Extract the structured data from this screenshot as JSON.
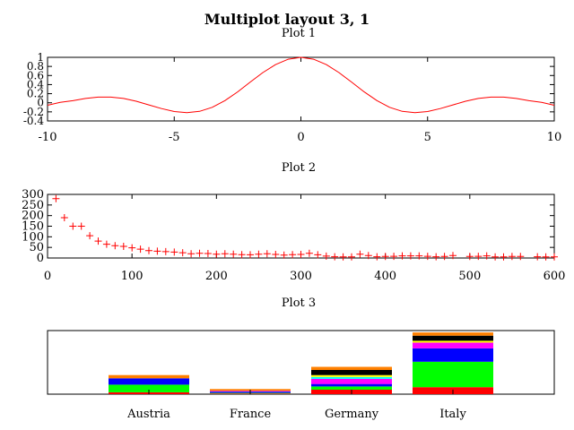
{
  "page_title": "Multiplot layout 3, 1",
  "chart_data": [
    {
      "type": "line",
      "title": "Plot 1",
      "xlim": [
        -10,
        10
      ],
      "ylim": [
        -0.4,
        1
      ],
      "x_ticks": [
        -10,
        -5,
        0,
        5,
        10
      ],
      "x_tick_labels": [
        "-10",
        "-5",
        "0",
        "5",
        "10"
      ],
      "y_ticks": [
        -0.4,
        -0.2,
        0,
        0.2,
        0.4,
        0.6,
        0.8,
        1
      ],
      "y_tick_labels": [
        "-0.4",
        "-0.2",
        "0",
        "0.2",
        "0.4",
        "0.6",
        "0.8",
        "1"
      ],
      "series": [
        {
          "color": "#ff0000",
          "x": [
            -10,
            -9.5,
            -9,
            -8.5,
            -8,
            -7.5,
            -7,
            -6.5,
            -6,
            -5.5,
            -5,
            -4.5,
            -4,
            -3.5,
            -3,
            -2.5,
            -2,
            -1.5,
            -1,
            -0.5,
            0,
            0.5,
            1,
            1.5,
            2,
            2.5,
            3,
            3.5,
            4,
            4.5,
            5,
            5.5,
            6,
            6.5,
            7,
            7.5,
            8,
            8.5,
            9,
            9.5,
            10
          ],
          "y": [
            -0.054,
            0.008,
            0.046,
            0.094,
            0.124,
            0.125,
            0.094,
            0.033,
            -0.047,
            -0.128,
            -0.192,
            -0.217,
            -0.189,
            -0.1,
            0.047,
            0.239,
            0.455,
            0.665,
            0.841,
            0.959,
            1.0,
            0.959,
            0.841,
            0.665,
            0.455,
            0.239,
            0.047,
            -0.1,
            -0.189,
            -0.217,
            -0.192,
            -0.128,
            -0.047,
            0.033,
            0.094,
            0.125,
            0.124,
            0.094,
            0.046,
            0.008,
            -0.054
          ]
        }
      ],
      "grid": false
    },
    {
      "type": "scatter",
      "title": "Plot 2",
      "xlim": [
        0,
        600
      ],
      "ylim": [
        0,
        300
      ],
      "x_ticks": [
        0,
        100,
        200,
        300,
        400,
        500,
        600
      ],
      "x_tick_labels": [
        "0",
        "100",
        "200",
        "300",
        "400",
        "500",
        "600"
      ],
      "y_ticks": [
        0,
        50,
        100,
        150,
        200,
        250,
        300
      ],
      "y_tick_labels": [
        "0",
        "50",
        "100",
        "150",
        "200",
        "250",
        "300"
      ],
      "series": [
        {
          "color": "#ff0000",
          "marker": "plus",
          "x": [
            10,
            20,
            30,
            40,
            50,
            60,
            70,
            80,
            90,
            100,
            110,
            120,
            130,
            140,
            150,
            160,
            170,
            180,
            190,
            200,
            210,
            220,
            230,
            240,
            250,
            260,
            270,
            280,
            290,
            300,
            310,
            320,
            330,
            340,
            350,
            360,
            370,
            380,
            390,
            400,
            410,
            420,
            430,
            440,
            450,
            460,
            470,
            480,
            500,
            510,
            520,
            530,
            540,
            550,
            560,
            580,
            590,
            600
          ],
          "y": [
            280,
            190,
            150,
            150,
            105,
            80,
            65,
            58,
            55,
            48,
            42,
            35,
            32,
            30,
            28,
            25,
            20,
            22,
            21,
            18,
            20,
            18,
            16,
            15,
            18,
            20,
            17,
            14,
            16,
            17,
            22,
            15,
            9,
            6,
            5,
            5,
            18,
            12,
            6,
            7,
            8,
            10,
            10,
            10,
            8,
            6,
            7,
            12,
            7,
            8,
            10,
            5,
            5,
            7,
            7,
            6,
            5,
            5
          ]
        }
      ],
      "grid": false
    },
    {
      "type": "bar",
      "stacked": true,
      "title": "Plot 3",
      "categories": [
        "Austria",
        "France",
        "Germany",
        "Italy"
      ],
      "series": [
        {
          "color": "#ff0000",
          "values": [
            3,
            1,
            7,
            11
          ]
        },
        {
          "color": "#00ff00",
          "values": [
            12,
            1,
            5,
            40
          ]
        },
        {
          "color": "#0000ff",
          "values": [
            10,
            2,
            4,
            21
          ]
        },
        {
          "color": "#ff00ff",
          "values": [
            0,
            1,
            8,
            9
          ]
        },
        {
          "color": "#00ffff",
          "values": [
            0,
            0,
            3,
            0
          ]
        },
        {
          "color": "#ffff00",
          "values": [
            0,
            0,
            3,
            3
          ]
        },
        {
          "color": "#000000",
          "values": [
            0,
            0,
            8,
            8
          ]
        },
        {
          "color": "#ff8000",
          "values": [
            5,
            3,
            5,
            5
          ]
        }
      ],
      "ylim": [
        0,
        100
      ],
      "grid": false
    }
  ]
}
